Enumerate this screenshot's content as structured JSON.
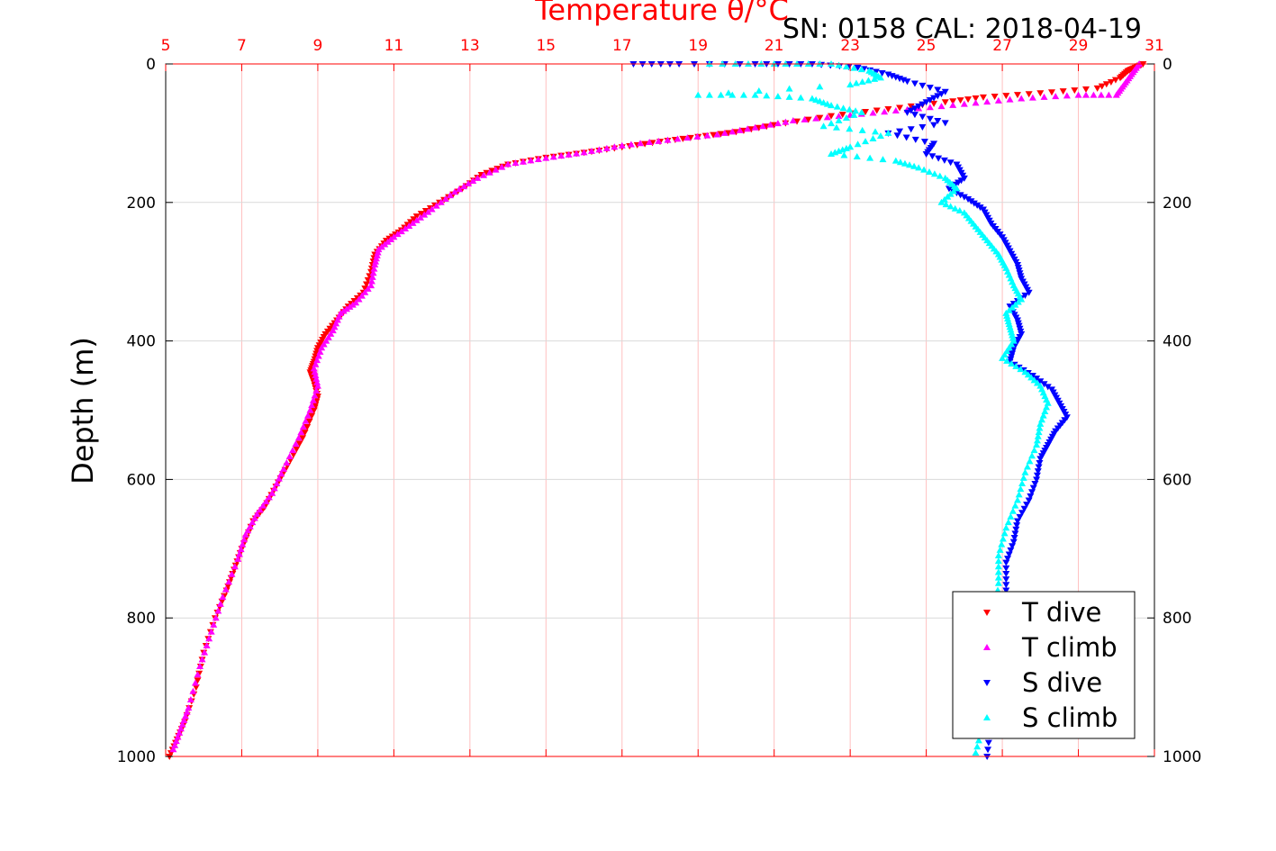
{
  "chart_data": {
    "type": "scatter",
    "title": "SN: 0158  CAL: 2018-04-19",
    "xlabel_top": "Temperature θ/°C",
    "ylabel": "Depth (m)",
    "xlim": [
      5,
      31
    ],
    "ylim": [
      0,
      1000
    ],
    "y_reversed": true,
    "x_ticks": [
      5,
      7,
      9,
      11,
      13,
      15,
      17,
      19,
      21,
      23,
      25,
      27,
      29,
      31
    ],
    "y_ticks": [
      0,
      200,
      400,
      600,
      800,
      1000
    ],
    "grid": true,
    "legend_position": "bottom-right",
    "colors": {
      "temperature_axis": "#ff0000",
      "t_dive": "#ff0000",
      "t_climb": "#ff00ff",
      "s_dive": "#0000ff",
      "s_climb": "#00ffff",
      "grid_x": "#ffc0c0",
      "grid_y": "#d9d9d9"
    },
    "series": [
      {
        "name": "T dive",
        "marker": "triangle-down",
        "points": [
          [
            30.7,
            0
          ],
          [
            30.5,
            5
          ],
          [
            30.3,
            10
          ],
          [
            30.1,
            20
          ],
          [
            29.5,
            35
          ],
          [
            28,
            42
          ],
          [
            26.5,
            48
          ],
          [
            25.5,
            55
          ],
          [
            24,
            65
          ],
          [
            22.5,
            75
          ],
          [
            21,
            88
          ],
          [
            20,
            98
          ],
          [
            19,
            105
          ],
          [
            18,
            112
          ],
          [
            17,
            120
          ],
          [
            16,
            128
          ],
          [
            15,
            135
          ],
          [
            14,
            145
          ],
          [
            13.3,
            160
          ],
          [
            12.8,
            180
          ],
          [
            12.2,
            200
          ],
          [
            11.6,
            220
          ],
          [
            11.2,
            240
          ],
          [
            10.8,
            255
          ],
          [
            10.5,
            275
          ],
          [
            10.4,
            300
          ],
          [
            10.2,
            330
          ],
          [
            9.8,
            350
          ],
          [
            9.5,
            370
          ],
          [
            9.2,
            390
          ],
          [
            9.0,
            410
          ],
          [
            8.9,
            430
          ],
          [
            8.8,
            445
          ],
          [
            8.9,
            460
          ],
          [
            9.0,
            480
          ],
          [
            8.9,
            500
          ],
          [
            8.6,
            540
          ],
          [
            8.2,
            580
          ],
          [
            7.9,
            610
          ],
          [
            7.6,
            640
          ],
          [
            7.3,
            660
          ],
          [
            7.0,
            700
          ],
          [
            6.8,
            730
          ],
          [
            6.6,
            760
          ],
          [
            6.3,
            800
          ],
          [
            6.0,
            850
          ],
          [
            5.8,
            900
          ],
          [
            5.5,
            950
          ],
          [
            5.3,
            975
          ],
          [
            5.1,
            1000
          ]
        ]
      },
      {
        "name": "T climb",
        "marker": "triangle-up",
        "points": [
          [
            30.6,
            0
          ],
          [
            30.4,
            15
          ],
          [
            30.2,
            30
          ],
          [
            30.0,
            45
          ],
          [
            29.0,
            45
          ],
          [
            27.5,
            50
          ],
          [
            26,
            58
          ],
          [
            24.5,
            66
          ],
          [
            23,
            74
          ],
          [
            21.5,
            82
          ],
          [
            20.5,
            92
          ],
          [
            19.5,
            102
          ],
          [
            18.2,
            110
          ],
          [
            17,
            118
          ],
          [
            16,
            128
          ],
          [
            15,
            136
          ],
          [
            14,
            145
          ],
          [
            13.2,
            165
          ],
          [
            12.6,
            185
          ],
          [
            12.0,
            210
          ],
          [
            11.5,
            230
          ],
          [
            11.0,
            250
          ],
          [
            10.6,
            268
          ],
          [
            10.5,
            290
          ],
          [
            10.4,
            320
          ],
          [
            10.0,
            345
          ],
          [
            9.6,
            360
          ],
          [
            9.4,
            385
          ],
          [
            9.1,
            410
          ],
          [
            8.9,
            440
          ],
          [
            9.0,
            465
          ],
          [
            8.8,
            500
          ],
          [
            8.5,
            540
          ],
          [
            8.1,
            585
          ],
          [
            7.8,
            620
          ],
          [
            7.4,
            650
          ],
          [
            7.1,
            680
          ],
          [
            6.9,
            715
          ],
          [
            6.5,
            770
          ],
          [
            6.2,
            820
          ],
          [
            5.9,
            870
          ],
          [
            5.6,
            930
          ],
          [
            5.4,
            960
          ],
          [
            5.2,
            990
          ]
        ]
      },
      {
        "name": "S dive",
        "marker": "triangle-down",
        "points": [
          [
            17.3,
            0
          ],
          [
            18.5,
            0
          ],
          [
            20.5,
            0
          ],
          [
            22,
            0
          ],
          [
            23.2,
            5
          ],
          [
            24,
            15
          ],
          [
            24.5,
            25
          ],
          [
            25.5,
            40
          ],
          [
            25,
            55
          ],
          [
            24.5,
            70
          ],
          [
            25.5,
            85
          ],
          [
            24,
            100
          ],
          [
            25.2,
            115
          ],
          [
            25,
            130
          ],
          [
            25.8,
            145
          ],
          [
            26,
            165
          ],
          [
            25.6,
            180
          ],
          [
            26.1,
            195
          ],
          [
            26.5,
            210
          ],
          [
            26.7,
            230
          ],
          [
            27.0,
            250
          ],
          [
            27.2,
            270
          ],
          [
            27.4,
            290
          ],
          [
            27.5,
            310
          ],
          [
            27.7,
            330
          ],
          [
            27.2,
            350
          ],
          [
            27.4,
            370
          ],
          [
            27.5,
            390
          ],
          [
            27.3,
            410
          ],
          [
            27.2,
            430
          ],
          [
            27.8,
            450
          ],
          [
            28.3,
            470
          ],
          [
            28.5,
            490
          ],
          [
            28.7,
            510
          ],
          [
            28.4,
            530
          ],
          [
            28.2,
            550
          ],
          [
            28.0,
            570
          ],
          [
            27.9,
            600
          ],
          [
            27.7,
            630
          ],
          [
            27.4,
            660
          ],
          [
            27.3,
            690
          ],
          [
            27.1,
            720
          ],
          [
            27.1,
            760
          ],
          [
            27.0,
            800
          ],
          [
            26.9,
            850
          ],
          [
            26.8,
            900
          ],
          [
            26.7,
            950
          ],
          [
            26.6,
            1000
          ]
        ]
      },
      {
        "name": "S climb",
        "marker": "triangle-up",
        "points": [
          [
            19.3,
            0
          ],
          [
            21,
            0
          ],
          [
            22.5,
            0
          ],
          [
            23.5,
            10
          ],
          [
            23.8,
            20
          ],
          [
            23,
            30
          ],
          [
            19,
            45
          ],
          [
            20.5,
            45
          ],
          [
            22,
            50
          ],
          [
            22.5,
            60
          ],
          [
            23.3,
            70
          ],
          [
            22.3,
            90
          ],
          [
            24,
            100
          ],
          [
            23,
            120
          ],
          [
            22.5,
            130
          ],
          [
            24.2,
            140
          ],
          [
            24.8,
            150
          ],
          [
            25.5,
            165
          ],
          [
            25.8,
            180
          ],
          [
            25.4,
            200
          ],
          [
            26.0,
            215
          ],
          [
            26.3,
            235
          ],
          [
            26.6,
            255
          ],
          [
            26.9,
            275
          ],
          [
            27.1,
            295
          ],
          [
            27.3,
            320
          ],
          [
            27.5,
            340
          ],
          [
            27.1,
            360
          ],
          [
            27.2,
            380
          ],
          [
            27.3,
            400
          ],
          [
            27.0,
            425
          ],
          [
            27.6,
            445
          ],
          [
            28.0,
            465
          ],
          [
            28.2,
            490
          ],
          [
            28.0,
            520
          ],
          [
            27.9,
            550
          ],
          [
            27.6,
            590
          ],
          [
            27.4,
            630
          ],
          [
            27.1,
            670
          ],
          [
            26.9,
            710
          ],
          [
            26.9,
            750
          ],
          [
            26.8,
            800
          ],
          [
            26.7,
            850
          ],
          [
            26.6,
            900
          ],
          [
            26.5,
            950
          ],
          [
            26.3,
            995
          ]
        ]
      }
    ]
  }
}
